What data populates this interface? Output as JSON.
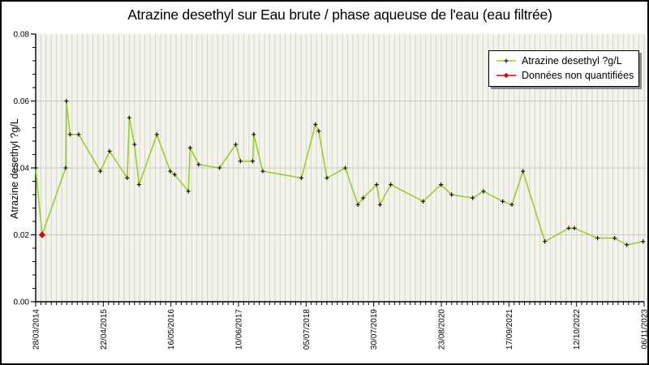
{
  "title": "Atrazine desethyl sur Eau brute / phase aqueuse de l'eau (eau filtrée)",
  "colors": {
    "series_line": "#9acd32",
    "marker": "#000000",
    "unquantified": "#dd0000",
    "plot_background": "#f4f4ec",
    "grid_vertical": "#d4d4cc",
    "grid_horizontal": "#c9c9c1",
    "axis": "#000000",
    "legend_shadow": "#8a8a8a"
  },
  "chart_data": {
    "type": "line",
    "title": "Atrazine desethyl sur Eau brute / phase aqueuse de l'eau (eau filtrée)",
    "xlabel": "",
    "ylabel": "Atrazine desethyl ?g/L",
    "ylim": [
      0,
      0.08
    ],
    "y_major_tick_labels": [
      "0.00",
      "0.02",
      "0.04",
      "0.06",
      "0.08"
    ],
    "y_minor_tick_step": 0.004,
    "grid": "vertical monthly gridlines on, horizontal gridlines at 0.02/0.04/0.06",
    "x_axis": {
      "start_date": "28/03/2014",
      "end_date": "06/11/2023",
      "total_days": 3510,
      "major_tick_every_days": 390,
      "minor_tick_every_days": 30
    },
    "x_tick_labels": [
      "28/03/2014",
      "22/04/2015",
      "16/05/2016",
      "10/06/2017",
      "05/07/2018",
      "30/07/2019",
      "23/08/2020",
      "17/09/2021",
      "12/10/2022",
      "06/11/2023"
    ],
    "legend": {
      "position": "top-right",
      "entries": [
        {
          "label": "Atrazine desethyl ?g/L",
          "line_color": "#9acd32",
          "marker": "black-plus"
        },
        {
          "label": "Données non quantifiées",
          "line_color": "#dd0000",
          "marker": "red-diamond"
        }
      ]
    },
    "series": [
      {
        "name": "Atrazine desethyl ?g/L",
        "note": "x = days since 28/03/2014 (estimated from pixel positions), y = concentration in ?g/L",
        "points": [
          [
            0,
            0.04
          ],
          [
            37,
            0.02
          ],
          [
            173,
            0.04
          ],
          [
            177,
            0.06
          ],
          [
            198,
            0.05
          ],
          [
            248,
            0.05
          ],
          [
            373,
            0.039
          ],
          [
            426,
            0.045
          ],
          [
            528,
            0.037
          ],
          [
            540,
            0.055
          ],
          [
            570,
            0.047
          ],
          [
            596,
            0.035
          ],
          [
            699,
            0.05
          ],
          [
            776,
            0.039
          ],
          [
            802,
            0.038
          ],
          [
            881,
            0.033
          ],
          [
            891,
            0.046
          ],
          [
            940,
            0.041
          ],
          [
            1061,
            0.04
          ],
          [
            1154,
            0.047
          ],
          [
            1181,
            0.042
          ],
          [
            1252,
            0.042
          ],
          [
            1258,
            0.05
          ],
          [
            1310,
            0.039
          ],
          [
            1533,
            0.037
          ],
          [
            1614,
            0.053
          ],
          [
            1633,
            0.051
          ],
          [
            1680,
            0.037
          ],
          [
            1786,
            0.04
          ],
          [
            1859,
            0.029
          ],
          [
            1889,
            0.031
          ],
          [
            1967,
            0.035
          ],
          [
            1986,
            0.029
          ],
          [
            2048,
            0.035
          ],
          [
            2235,
            0.03
          ],
          [
            2338,
            0.035
          ],
          [
            2399,
            0.032
          ],
          [
            2521,
            0.031
          ],
          [
            2583,
            0.033
          ],
          [
            2694,
            0.03
          ],
          [
            2747,
            0.029
          ],
          [
            2811,
            0.039
          ],
          [
            2937,
            0.018
          ],
          [
            3075,
            0.022
          ],
          [
            3108,
            0.022
          ],
          [
            3241,
            0.019
          ],
          [
            3340,
            0.019
          ],
          [
            3410,
            0.017
          ],
          [
            3504,
            0.018
          ]
        ]
      }
    ],
    "unquantified_points": [
      {
        "day": 37,
        "value": 0.02
      }
    ]
  }
}
